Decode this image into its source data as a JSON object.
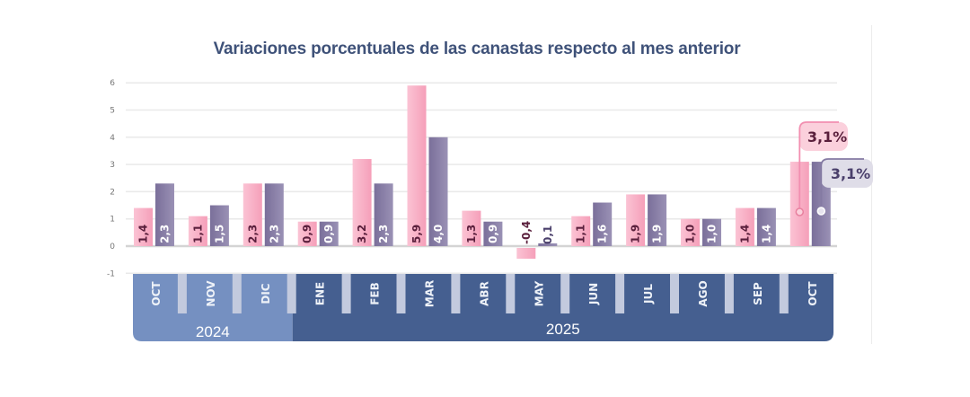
{
  "chart_data": {
    "type": "bar",
    "title": "Variaciones porcentuales de las canastas respecto al mes anterior",
    "xlabel": "",
    "ylabel": "",
    "ylim": [
      -1,
      6
    ],
    "yticks": [
      "-1",
      "0",
      "1",
      "2",
      "3",
      "4",
      "5",
      "6"
    ],
    "grid": true,
    "categories": [
      "OCT",
      "NOV",
      "DIC",
      "ENE",
      "FEB",
      "MAR",
      "ABR",
      "MAY",
      "JUN",
      "JUL",
      "AGO",
      "SEP",
      "OCT"
    ],
    "years": [
      {
        "label": "2024",
        "months": 3
      },
      {
        "label": "2025",
        "months": 10
      }
    ],
    "series": [
      {
        "name": "serie-rosa",
        "color": "#f7a8c0",
        "values": [
          1.4,
          1.1,
          2.3,
          0.9,
          3.2,
          5.9,
          1.3,
          -0.4,
          1.1,
          1.9,
          1.0,
          1.4,
          3.1
        ],
        "labels": [
          "1,4",
          "1,1",
          "2,3",
          "0,9",
          "3,2",
          "5,9",
          "1,3",
          "-0,4",
          "1,1",
          "1,9",
          "1,0",
          "1,4",
          ""
        ]
      },
      {
        "name": "serie-violeta",
        "color": "#857ba3",
        "values": [
          2.3,
          1.5,
          2.3,
          0.9,
          2.3,
          4.0,
          0.9,
          0.1,
          1.6,
          1.9,
          1.0,
          1.4,
          3.1
        ],
        "labels": [
          "2,3",
          "1,5",
          "2,3",
          "0,9",
          "2,3",
          "4,0",
          "0,9",
          "0,1",
          "1,6",
          "1,9",
          "1,0",
          "1,4",
          ""
        ]
      }
    ],
    "callouts": [
      {
        "series": 0,
        "text": "3,1%"
      },
      {
        "series": 1,
        "text": "3,1%"
      }
    ],
    "colors": {
      "title": "#3f5279",
      "year_2024": "#7590c1",
      "year_2025": "#455f90",
      "separator": "#c3cade",
      "pink_label": "#5a1f3c",
      "violet_label": "#ffffff"
    }
  }
}
